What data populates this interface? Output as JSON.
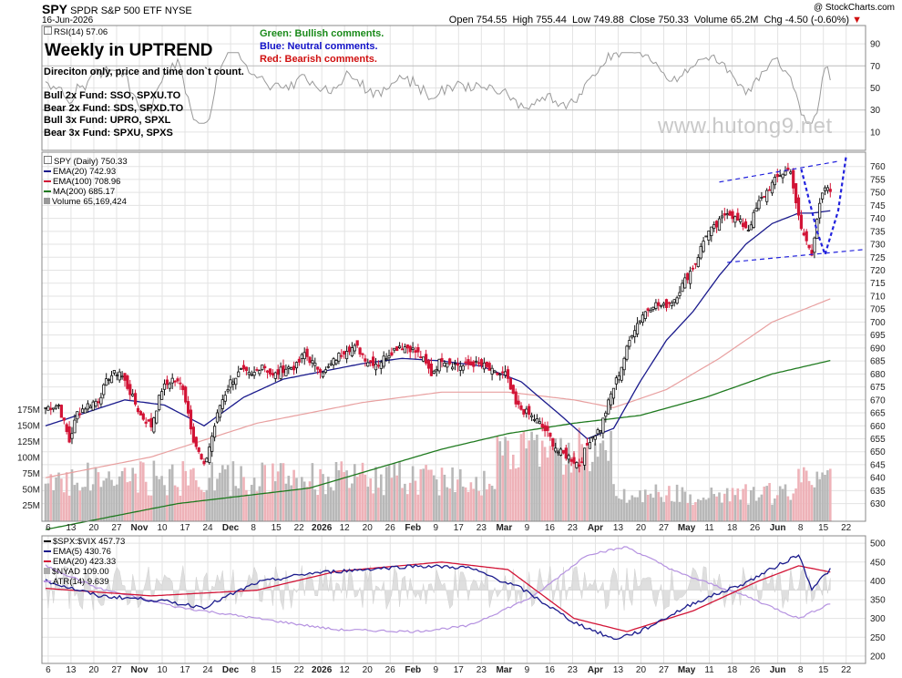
{
  "header": {
    "ticker": "SPY",
    "name": "SPDR S&P 500 ETF",
    "exchange": "NYSE",
    "date": "16-Jun-2026",
    "credit": "@ StockCharts.com",
    "open_label": "Open",
    "open": "754.55",
    "high_label": "High",
    "high": "755.44",
    "low_label": "Low",
    "low": "749.88",
    "close_label": "Close",
    "close": "750.33",
    "volume_label": "Volume",
    "volume": "65.2M",
    "chg_label": "Chg",
    "chg": "-4.50 (-0.60%)"
  },
  "annotations": {
    "headline": "Weekly in UPTREND",
    "subline": "Direciton only, price and time don`t count.",
    "funds": [
      "Bull 2x Fund: SSO, SPXU.TO",
      "Bear 2x Fund: SDS, SPXD.TO",
      "Bull 3x Fund: UPRO, SPXL",
      "Bear 3x Fund: SPXU, SPXS"
    ],
    "green_note": "Green: Bullish comments.",
    "blue_note": "Blue: Neutral comments.",
    "red_note": "Red: Bearish comments.",
    "watermark": "www.hutong9.net"
  },
  "legends": {
    "rsi": "RSI(14) 57.06",
    "spy": "SPY (Daily) 750.33",
    "ema20": "EMA(20) 742.93",
    "ema100": "EMA(100) 708.96",
    "ma200": "MA(200) 685.17",
    "volume": "Volume 65,169,424",
    "spxvix": "$SPX:$VIX 457.73",
    "ema5b": "EMA(5) 430.76",
    "ema20b": "EMA(20) 423.33",
    "nyad": "$NYAD 109.00",
    "atr": "ATR(14) 9.639"
  },
  "colors": {
    "up": "#111111",
    "down": "#d21436",
    "ema20": "#1a1a8c",
    "ema100": "#e8a0a0",
    "ma200": "#1f7a1f",
    "vol_up": "#b8b8b8",
    "vol_down": "#eeb2b8",
    "ratio_ema5": "#1a1a8c",
    "ratio_ema20": "#d21436",
    "atr": "#b592e0",
    "grid": "#e3e3e3",
    "channel": "#2222dd"
  },
  "chart_data": {
    "type": "candlestick",
    "x_tick_labels": [
      "6",
      "13",
      "20",
      "27",
      "Nov",
      "10",
      "17",
      "24",
      "Dec",
      "8",
      "15",
      "22",
      "2026",
      "12",
      "20",
      "26",
      "Feb",
      "9",
      "17",
      "23",
      "Mar",
      "9",
      "16",
      "23",
      "Apr",
      "13",
      "20",
      "27",
      "May",
      "11",
      "18",
      "26",
      "Jun",
      "8",
      "15",
      "22"
    ],
    "price_axis": {
      "range": [
        626,
        762
      ],
      "ticks": [
        630,
        635,
        640,
        645,
        650,
        655,
        660,
        665,
        670,
        675,
        680,
        685,
        690,
        695,
        700,
        705,
        710,
        715,
        720,
        725,
        730,
        735,
        740,
        745,
        750,
        755,
        760
      ]
    },
    "volume_axis": {
      "ticks": [
        "25M",
        "50M",
        "75M",
        "100M",
        "125M",
        "150M",
        "175M"
      ],
      "range_millions": [
        0,
        200
      ]
    },
    "price_anchors": [
      [
        0,
        667
      ],
      [
        5,
        668
      ],
      [
        9,
        654
      ],
      [
        12,
        665
      ],
      [
        16,
        668
      ],
      [
        20,
        670
      ],
      [
        24,
        679
      ],
      [
        28,
        681
      ],
      [
        32,
        673
      ],
      [
        36,
        664
      ],
      [
        40,
        660
      ],
      [
        44,
        674
      ],
      [
        48,
        678
      ],
      [
        52,
        675
      ],
      [
        56,
        655
      ],
      [
        60,
        644
      ],
      [
        62,
        652
      ],
      [
        66,
        668
      ],
      [
        70,
        677
      ],
      [
        74,
        681
      ],
      [
        78,
        679
      ],
      [
        82,
        684
      ],
      [
        86,
        679
      ],
      [
        90,
        682
      ],
      [
        95,
        683
      ],
      [
        98,
        688
      ],
      [
        102,
        683
      ],
      [
        106,
        681
      ],
      [
        110,
        686
      ],
      [
        114,
        690
      ],
      [
        118,
        690
      ],
      [
        122,
        685
      ],
      [
        126,
        684
      ],
      [
        130,
        688
      ],
      [
        134,
        691
      ],
      [
        138,
        690
      ],
      [
        142,
        687
      ],
      [
        146,
        680
      ],
      [
        150,
        686
      ],
      [
        154,
        684
      ],
      [
        158,
        683
      ],
      [
        162,
        684
      ],
      [
        166,
        683
      ],
      [
        170,
        680
      ],
      [
        174,
        680
      ],
      [
        178,
        668
      ],
      [
        182,
        665
      ],
      [
        186,
        662
      ],
      [
        190,
        657
      ],
      [
        194,
        650
      ],
      [
        198,
        648
      ],
      [
        202,
        645
      ],
      [
        206,
        655
      ],
      [
        210,
        659
      ],
      [
        214,
        672
      ],
      [
        218,
        683
      ],
      [
        222,
        696
      ],
      [
        226,
        703
      ],
      [
        230,
        707
      ],
      [
        234,
        706
      ],
      [
        238,
        709
      ],
      [
        242,
        716
      ],
      [
        246,
        723
      ],
      [
        250,
        734
      ],
      [
        254,
        737
      ],
      [
        258,
        743
      ],
      [
        262,
        739
      ],
      [
        266,
        736
      ],
      [
        270,
        746
      ],
      [
        274,
        752
      ],
      [
        278,
        757
      ],
      [
        282,
        759
      ],
      [
        284,
        745
      ],
      [
        286,
        736
      ],
      [
        288,
        731
      ],
      [
        290,
        727
      ],
      [
        292,
        740
      ],
      [
        294,
        749
      ],
      [
        296,
        752
      ],
      [
        297,
        750.33
      ]
    ],
    "ema20_anchors": [
      [
        0,
        660
      ],
      [
        15,
        665
      ],
      [
        30,
        670
      ],
      [
        45,
        668
      ],
      [
        60,
        660
      ],
      [
        75,
        671
      ],
      [
        90,
        678
      ],
      [
        105,
        681
      ],
      [
        120,
        684
      ],
      [
        135,
        686
      ],
      [
        150,
        685
      ],
      [
        165,
        683
      ],
      [
        180,
        677
      ],
      [
        195,
        664
      ],
      [
        205,
        655
      ],
      [
        215,
        659
      ],
      [
        225,
        677
      ],
      [
        235,
        693
      ],
      [
        245,
        704
      ],
      [
        255,
        718
      ],
      [
        265,
        730
      ],
      [
        275,
        738
      ],
      [
        285,
        742
      ],
      [
        290,
        742
      ],
      [
        297,
        742.93
      ]
    ],
    "ema100_anchors": [
      [
        0,
        640
      ],
      [
        40,
        648
      ],
      [
        80,
        661
      ],
      [
        120,
        669
      ],
      [
        150,
        673
      ],
      [
        175,
        673
      ],
      [
        200,
        670
      ],
      [
        215,
        667
      ],
      [
        235,
        674
      ],
      [
        255,
        686
      ],
      [
        275,
        700
      ],
      [
        297,
        708.96
      ]
    ],
    "ma200_anchors": [
      [
        0,
        620
      ],
      [
        50,
        630
      ],
      [
        100,
        636
      ],
      [
        150,
        651
      ],
      [
        175,
        657
      ],
      [
        200,
        661
      ],
      [
        225,
        664
      ],
      [
        250,
        671
      ],
      [
        275,
        680
      ],
      [
        297,
        685.17
      ]
    ],
    "channel": {
      "upper": [
        [
          255,
          754
        ],
        [
          300,
          762
        ]
      ],
      "lower": [
        [
          258,
          723
        ],
        [
          310,
          728
        ]
      ],
      "dotted_path": [
        [
          286,
          759
        ],
        [
          292,
          735
        ],
        [
          295,
          726
        ],
        [
          300,
          743
        ],
        [
          303,
          764
        ]
      ]
    },
    "rsi": {
      "range": [
        0,
        100
      ],
      "ticks": [
        10,
        30,
        50,
        70,
        90
      ],
      "last": 57.06
    },
    "ratio_panel": {
      "range": [
        190,
        510
      ],
      "ticks": [
        200,
        250,
        300,
        350,
        400,
        450,
        500
      ],
      "ema5_last": 430.76,
      "ema20_last": 423.33,
      "atr_last": 9.639,
      "nyad_last": 109.0
    }
  }
}
